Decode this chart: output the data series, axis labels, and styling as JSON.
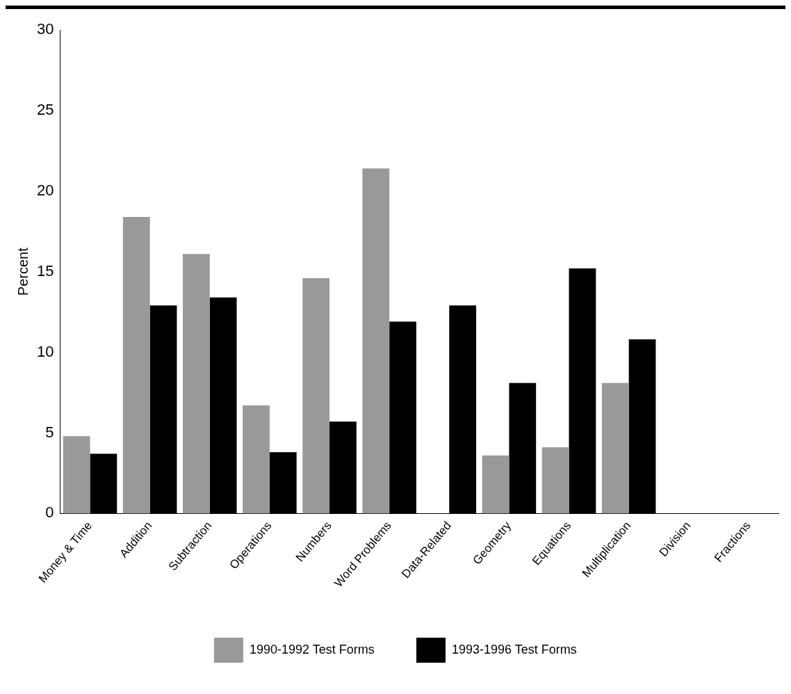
{
  "chart_data": {
    "type": "bar",
    "ylabel": "Percent",
    "categories": [
      "Money & Time",
      "Addition",
      "Subtraction",
      "Operations",
      "Numbers",
      "Word Problems",
      "Data-Related",
      "Geometry",
      "Equations",
      "Multiplication",
      "Division",
      "Fractions"
    ],
    "series": [
      {
        "name": "1990-1992 Test Forms",
        "color": "#999999",
        "values": [
          4.8,
          18.4,
          16.1,
          6.7,
          14.6,
          21.4,
          null,
          3.6,
          4.1,
          8.1,
          null,
          null
        ]
      },
      {
        "name": "1993-1996 Test Forms",
        "color": "#000000",
        "values": [
          3.7,
          12.9,
          13.4,
          3.8,
          5.7,
          11.9,
          12.9,
          8.1,
          15.2,
          10.8,
          null,
          null
        ]
      }
    ],
    "ylim": [
      0,
      30
    ],
    "yticks": [
      0,
      5,
      10,
      15,
      20,
      25,
      30
    ],
    "grid": false,
    "legend": "bottom"
  }
}
